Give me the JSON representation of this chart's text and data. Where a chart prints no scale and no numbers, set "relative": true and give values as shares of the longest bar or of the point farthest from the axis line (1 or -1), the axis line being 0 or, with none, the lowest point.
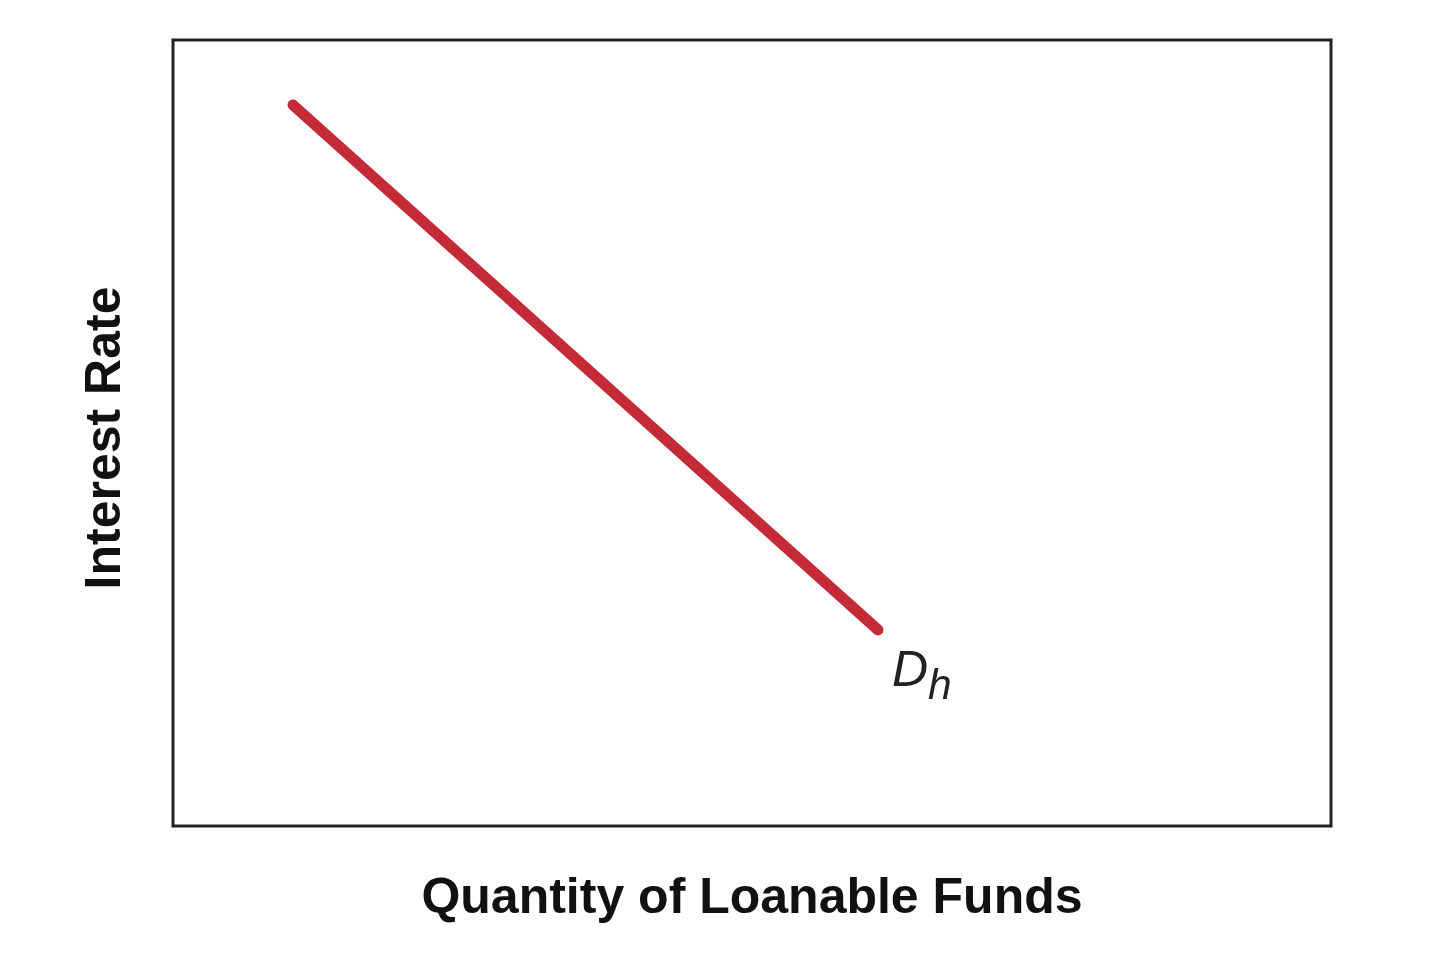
{
  "chart_data": {
    "type": "line",
    "relative": true,
    "xlabel": "Quantity of Loanable Funds",
    "ylabel": "Interest Rate",
    "categories": [
      null,
      null
    ],
    "series": [
      {
        "name": "D$_{h}$",
        "color": "#c42a37",
        "values": [
          1,
          0.272
        ]
      }
    ],
    "legend": false,
    "grid": false,
    "marker": "none",
    "line_style": "solid"
  }
}
